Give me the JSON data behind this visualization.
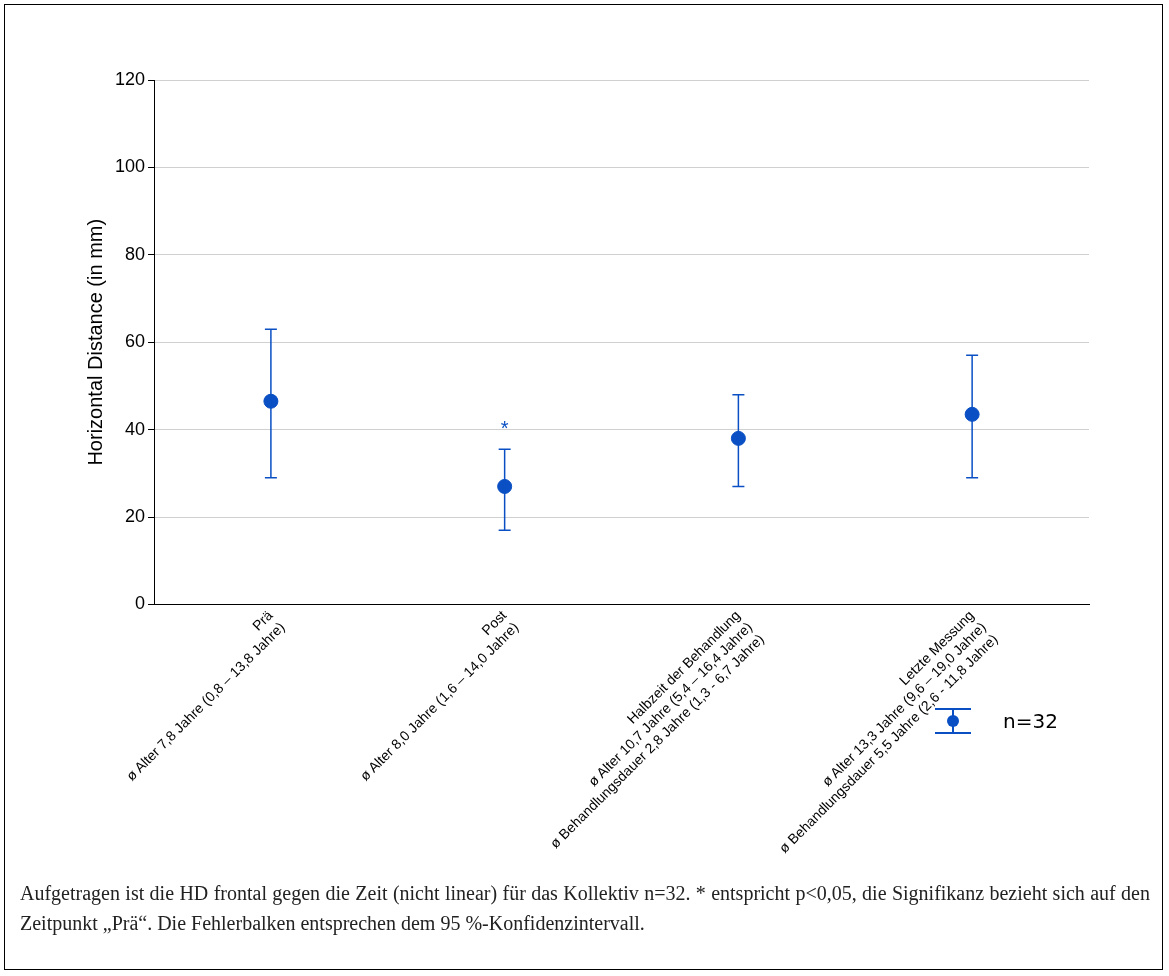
{
  "chart_data": {
    "type": "scatter",
    "categories": [
      "Prä\nø Alter 7,8 Jahre (0,8 – 13,8 Jahre)",
      "Post\nø Alter 8,0 Jahre (1,6 – 14,0 Jahre)",
      "Halbzeit der Behandlung\nø Alter 10,7 Jahre (5,4 – 16,4 Jahre)\nø Behandlungsdauer 2,8 Jahre (1,3 - 6,7 Jahre)",
      "Letzte Messung\nø Alter 13,3 Jahre (9,6 – 19,0 Jahre)\nø Behandlungsdauer 5,5 Jahre (2,6 - 11,8 Jahre)"
    ],
    "series": [
      {
        "name": "n=32",
        "color": "#0a50c4",
        "values": [
          46.5,
          27,
          38,
          43.5
        ],
        "errors": [
          [
            29,
            63
          ],
          [
            17,
            35.5
          ],
          [
            27,
            48
          ],
          [
            29,
            57
          ]
        ],
        "value_labels": [
          null,
          "*",
          null,
          null
        ]
      }
    ],
    "ylabel": "Horizontal Distance (in mm)",
    "ylim": [
      0,
      120
    ],
    "yticks": [
      0,
      20,
      40,
      60,
      80,
      100,
      120
    ],
    "grid": "y",
    "marker": "circle",
    "legend": "bottom right",
    "annotations": [
      "Aufgetragen ist die HD frontal gegen die Zeit (nicht linear) für das Kollektiv n=32. * entspricht p<0,05, die Signifikanz bezieht sich auf den Zeitpunkt „Prä“. Die Fehlerbalken entsprechen dem 95 %-Konfidenzintervall."
    ]
  }
}
